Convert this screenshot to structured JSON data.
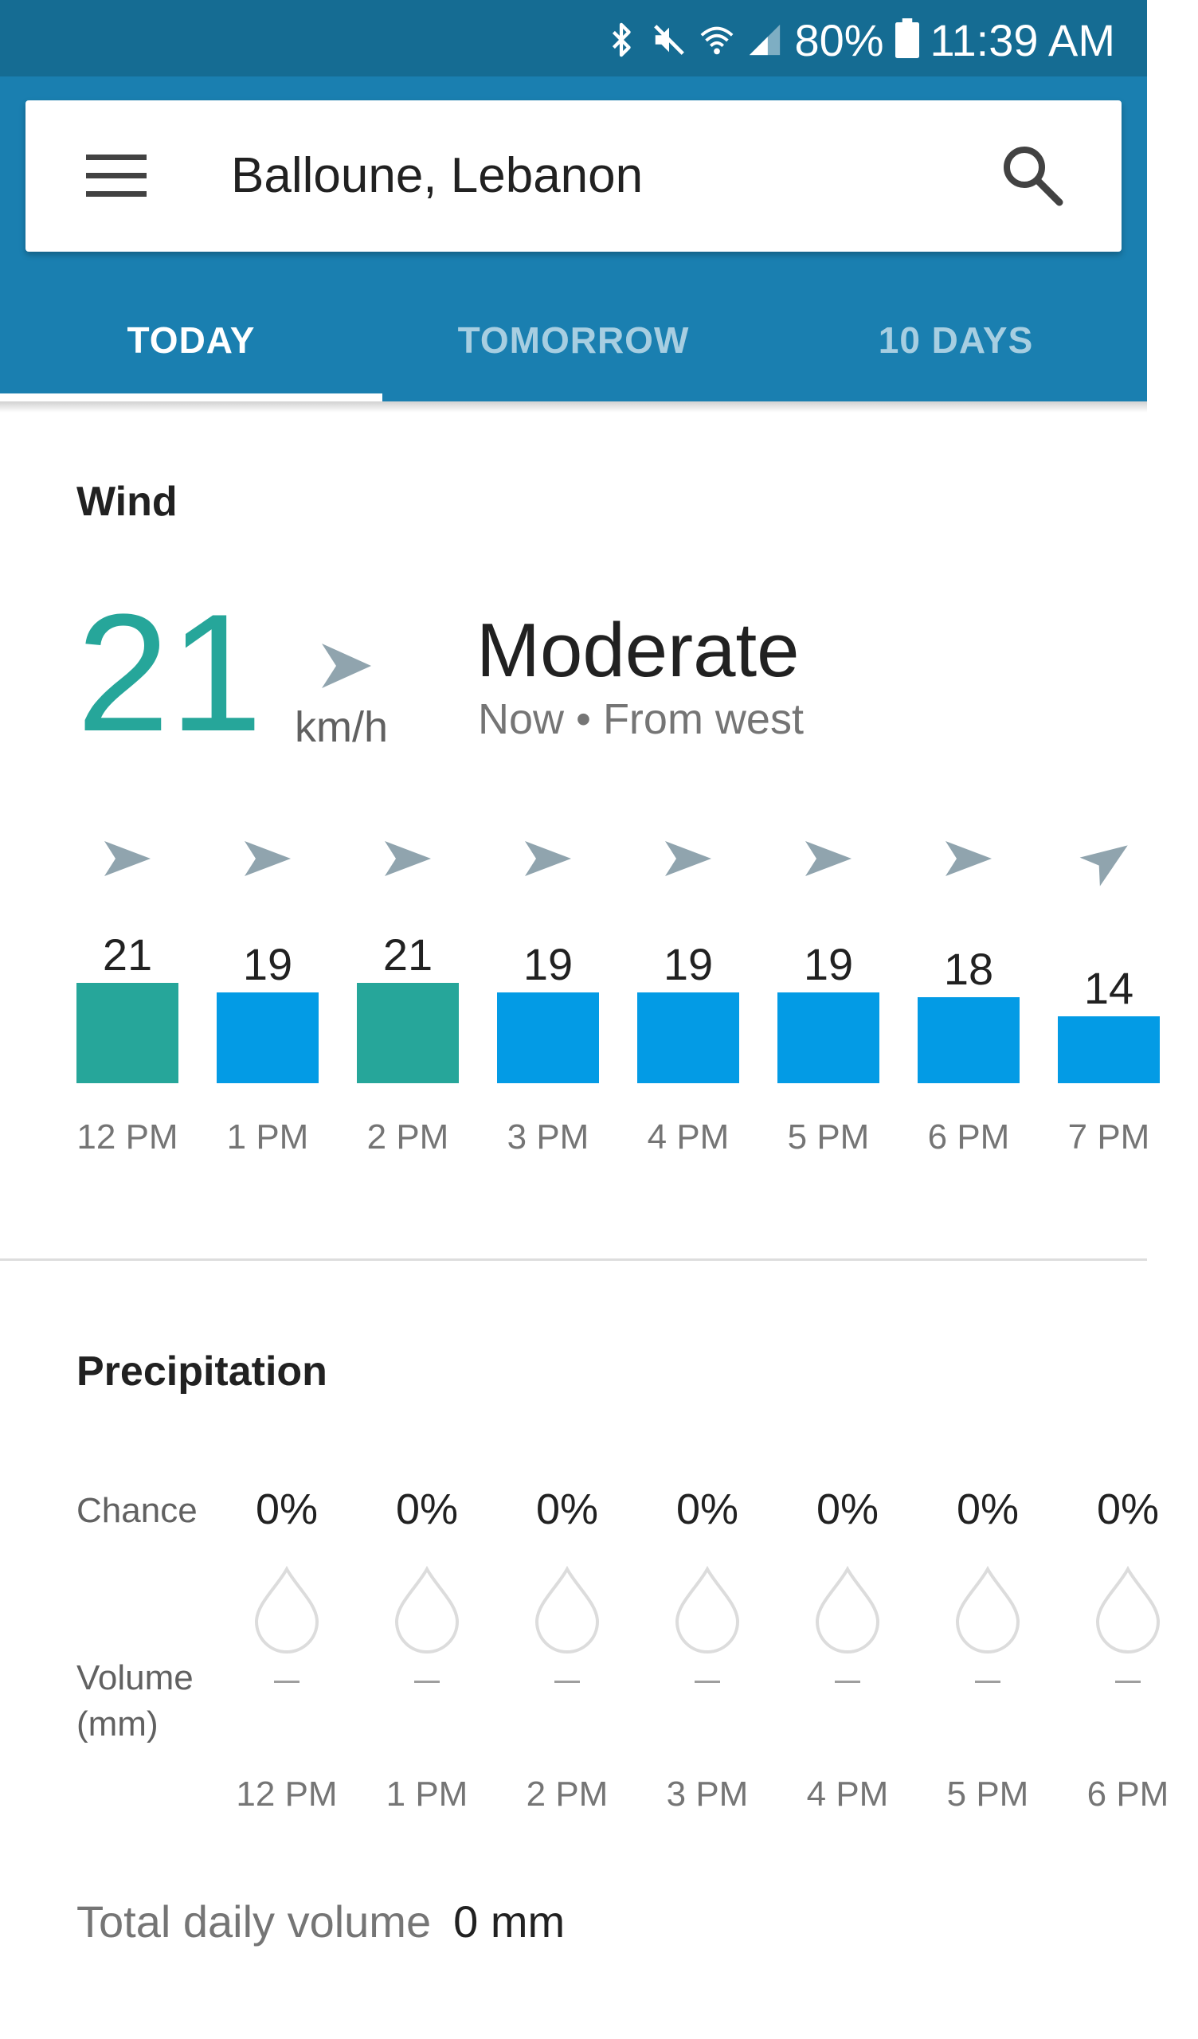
{
  "status_bar": {
    "battery": "80%",
    "time": "11:39 AM",
    "icons": [
      "bluetooth-icon",
      "mute-icon",
      "wifi-icon",
      "signal-icon",
      "battery-icon"
    ]
  },
  "search": {
    "location": "Balloune, Lebanon",
    "menu_icon": "menu-icon",
    "search_icon": "search-icon"
  },
  "tabs": [
    {
      "label": "TODAY",
      "active": true
    },
    {
      "label": "TOMORROW",
      "active": false
    },
    {
      "label": "10 DAYS",
      "active": false
    }
  ],
  "wind": {
    "title": "Wind",
    "speed": "21",
    "unit": "km/h",
    "description": "Moderate",
    "subtitle": "Now • From west",
    "colors": {
      "strong": "#26a69a",
      "normal": "#039be5",
      "arrow": "#90a4ae"
    }
  },
  "chart_data": {
    "type": "bar",
    "categories": [
      "12 PM",
      "1 PM",
      "2 PM",
      "3 PM",
      "4 PM",
      "5 PM",
      "6 PM",
      "7 PM"
    ],
    "values": [
      21,
      19,
      21,
      19,
      19,
      19,
      18,
      14
    ],
    "highlight": [
      true,
      false,
      true,
      false,
      false,
      false,
      false,
      false
    ],
    "arrow_direction": [
      "east",
      "east",
      "east",
      "east",
      "east",
      "east",
      "east",
      "north-east"
    ],
    "title": "",
    "xlabel": "",
    "ylabel": ""
  },
  "precipitation": {
    "title": "Precipitation",
    "chance_label": "Chance",
    "volume_label_line1": "Volume",
    "volume_label_line2": "(mm)",
    "columns": [
      {
        "chance": "0%",
        "volume": "–",
        "time": "12 PM"
      },
      {
        "chance": "0%",
        "volume": "–",
        "time": "1 PM"
      },
      {
        "chance": "0%",
        "volume": "–",
        "time": "2 PM"
      },
      {
        "chance": "0%",
        "volume": "–",
        "time": "3 PM"
      },
      {
        "chance": "0%",
        "volume": "–",
        "time": "4 PM"
      },
      {
        "chance": "0%",
        "volume": "–",
        "time": "5 PM"
      },
      {
        "chance": "0%",
        "volume": "–",
        "time": "6 PM"
      }
    ],
    "total_label": "Total daily volume",
    "total_value": "0 mm"
  }
}
